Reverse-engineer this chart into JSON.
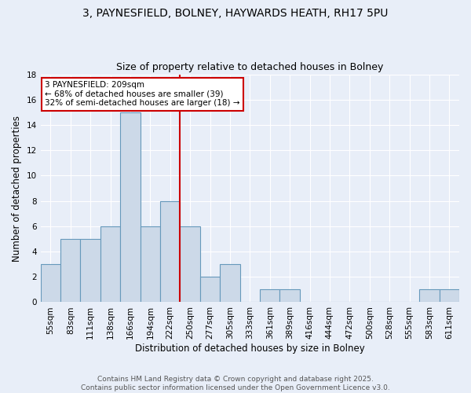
{
  "title_line1": "3, PAYNESFIELD, BOLNEY, HAYWARDS HEATH, RH17 5PU",
  "title_line2": "Size of property relative to detached houses in Bolney",
  "xlabel": "Distribution of detached houses by size in Bolney",
  "ylabel": "Number of detached properties",
  "categories": [
    "55sqm",
    "83sqm",
    "111sqm",
    "138sqm",
    "166sqm",
    "194sqm",
    "222sqm",
    "250sqm",
    "277sqm",
    "305sqm",
    "333sqm",
    "361sqm",
    "389sqm",
    "416sqm",
    "444sqm",
    "472sqm",
    "500sqm",
    "528sqm",
    "555sqm",
    "583sqm",
    "611sqm"
  ],
  "values": [
    3,
    5,
    5,
    6,
    15,
    6,
    8,
    6,
    2,
    3,
    0,
    1,
    1,
    0,
    0,
    0,
    0,
    0,
    0,
    1,
    1
  ],
  "bar_color": "#ccd9e8",
  "bar_edge_color": "#6699bb",
  "vline_color": "#cc0000",
  "vline_position": 6.5,
  "annotation_text": "3 PAYNESFIELD: 209sqm\n← 68% of detached houses are smaller (39)\n32% of semi-detached houses are larger (18) →",
  "annotation_box_color": "white",
  "annotation_box_edge_color": "#cc0000",
  "ylim": [
    0,
    18
  ],
  "yticks": [
    0,
    2,
    4,
    6,
    8,
    10,
    12,
    14,
    16,
    18
  ],
  "footer_text": "Contains HM Land Registry data © Crown copyright and database right 2025.\nContains public sector information licensed under the Open Government Licence v3.0.",
  "background_color": "#e8eef8",
  "plot_background_color": "#e8eef8",
  "grid_color": "#ffffff",
  "title_fontsize": 10,
  "subtitle_fontsize": 9,
  "axis_label_fontsize": 8.5,
  "tick_fontsize": 7.5,
  "footer_fontsize": 6.5,
  "annotation_fontsize": 7.5
}
